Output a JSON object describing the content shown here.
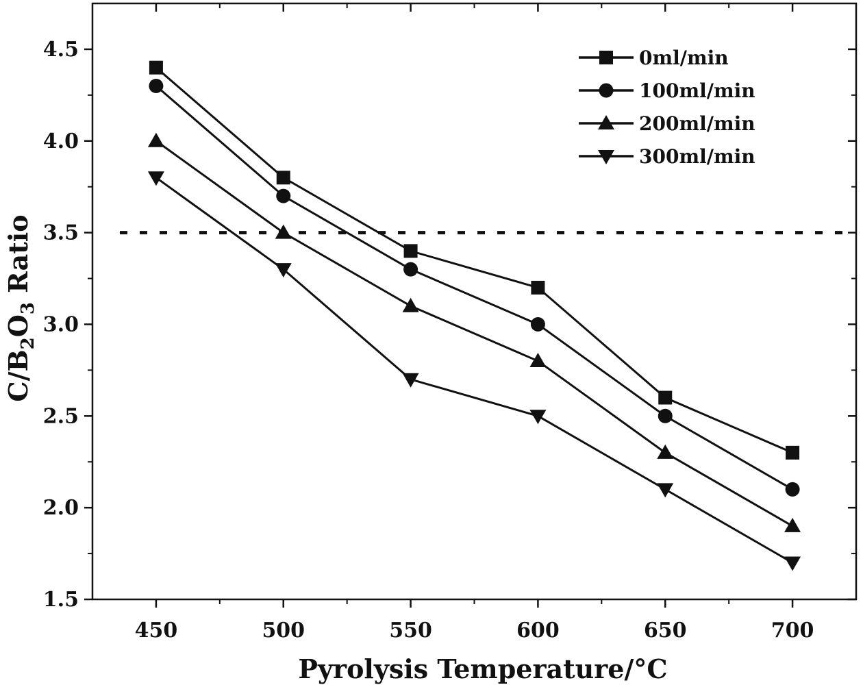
{
  "chart_data": {
    "type": "line",
    "xlabel": "Pyrolysis Temperature/°C",
    "ylabel": {
      "prefix": "C/B",
      "sub1": "2",
      "mid": "O",
      "sub2": "3",
      "suffix": " Ratio"
    },
    "x": [
      450,
      500,
      550,
      600,
      650,
      700
    ],
    "xlim": [
      425,
      725
    ],
    "ylim": [
      1.5,
      4.75
    ],
    "xticks": [
      450,
      500,
      550,
      600,
      650,
      700
    ],
    "xtick_labels": [
      "450",
      "500",
      "550",
      "600",
      "650",
      "700"
    ],
    "yticks": [
      1.5,
      2.0,
      2.5,
      3.0,
      3.5,
      4.0,
      4.5
    ],
    "ytick_labels": [
      "1.5",
      "2.0",
      "2.5",
      "3.0",
      "3.5",
      "4.0",
      "4.5"
    ],
    "reference_line": {
      "y": 3.5,
      "style": "dotted"
    },
    "legend_position": "top-right",
    "grid": false,
    "series": [
      {
        "name": "0ml/min",
        "marker": "square",
        "values": [
          4.4,
          3.8,
          3.4,
          3.2,
          2.6,
          2.3
        ]
      },
      {
        "name": "100ml/min",
        "marker": "circle",
        "values": [
          4.3,
          3.7,
          3.3,
          3.0,
          2.5,
          2.1
        ]
      },
      {
        "name": "200ml/min",
        "marker": "triangle-up",
        "values": [
          4.0,
          3.5,
          3.1,
          2.8,
          2.3,
          1.9
        ]
      },
      {
        "name": "300ml/min",
        "marker": "triangle-down",
        "values": [
          3.8,
          3.3,
          2.7,
          2.5,
          2.1,
          1.7
        ]
      }
    ],
    "colors": {
      "line": "#111111",
      "axis": "#111111",
      "background": "#ffffff"
    }
  }
}
